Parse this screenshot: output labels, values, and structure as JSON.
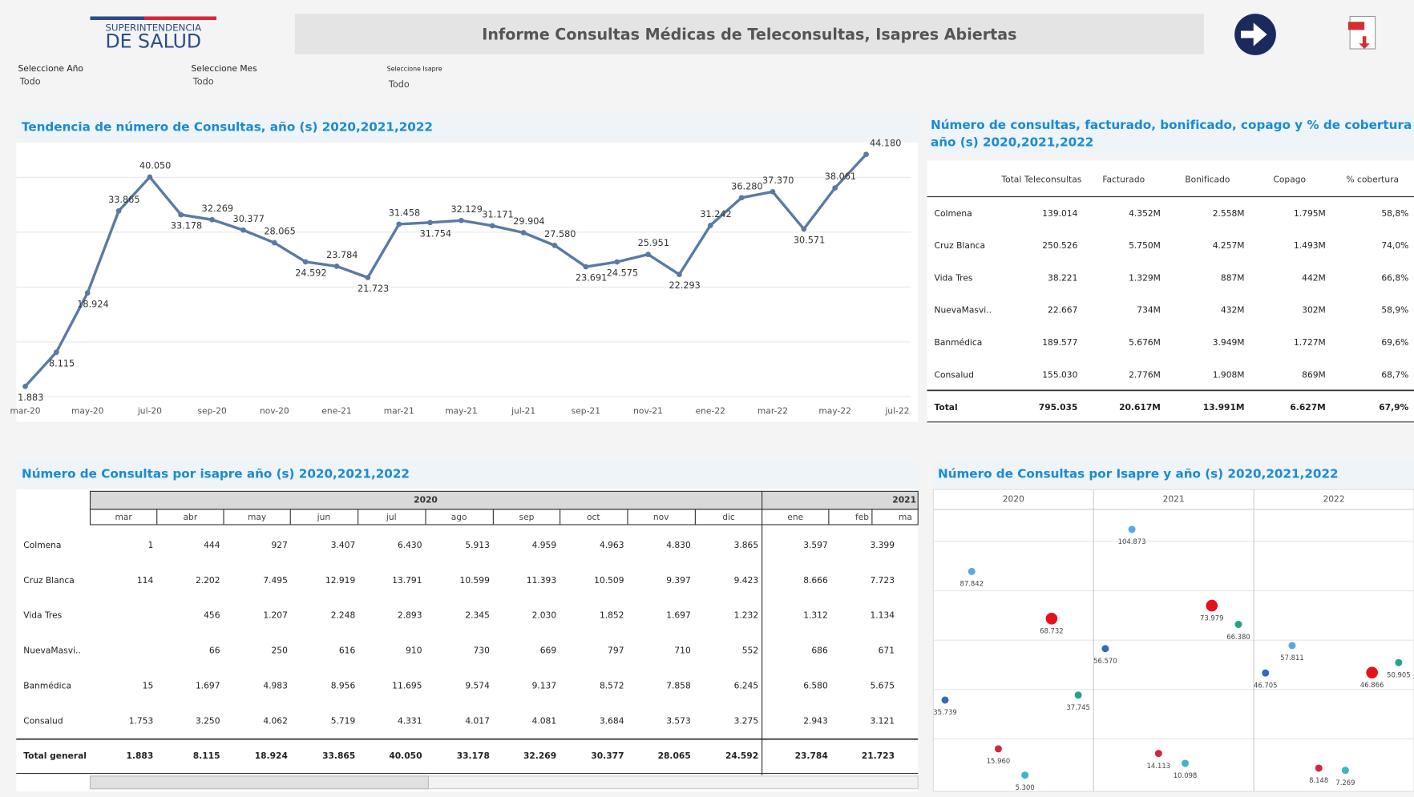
{
  "header": {
    "logo_top": "SUPERINTENDENCIA",
    "logo_bottom": "DE SALUD",
    "title": "Informe Consultas Médicas de Teleconsultas, Isapres Abiertas"
  },
  "filters": [
    {
      "label": "Seleccione Año",
      "value": "Todo"
    },
    {
      "label": "Seleccione Mes",
      "value": "Todo"
    },
    {
      "label": "Seleccione Isapre",
      "value": "Todo"
    }
  ],
  "trend_chart": {
    "type": "line",
    "title": "Tendencia de número de Consultas, año (s) 2020,2021,2022",
    "categories": [
      "mar-20",
      null,
      "may-20",
      null,
      "jul-20",
      null,
      "sep-20",
      null,
      "nov-20",
      null,
      "ene-21",
      null,
      "mar-21",
      null,
      "may-21",
      null,
      "jul-21",
      null,
      "sep-21",
      null,
      "nov-21",
      null,
      "ene-22",
      null,
      "mar-22",
      null,
      "may-22",
      null,
      "jul-22"
    ],
    "values": [
      1883,
      8115,
      18924,
      33865,
      40050,
      33178,
      32269,
      30377,
      28065,
      24592,
      23784,
      21723,
      31458,
      31754,
      32129,
      31171,
      29904,
      27580,
      23691,
      24575,
      25951,
      22293,
      31242,
      36280,
      37370,
      30571,
      38061,
      44180,
      null
    ],
    "value_labels": [
      "1.883",
      "8.115",
      "18.924",
      "33.865",
      "40.050",
      "33.178",
      "32.269",
      "30.377",
      "28.065",
      "24.592",
      "23.784",
      "21.723",
      "31.458",
      "31.754",
      "32.129",
      "31.171",
      "29.904",
      "27.580",
      "23.691",
      "24.575",
      "25.951",
      "22.293",
      "31.242",
      "36.280",
      "37.370",
      "30.571",
      "38.061",
      "44.180",
      null
    ],
    "color": "#5a7aa5",
    "ylim": [
      0,
      46500
    ],
    "gridlines": [
      0,
      10000,
      20000,
      30000,
      40000
    ]
  },
  "summary_table": {
    "title": "Número de consultas, facturado, bonificado, copago y % de cobertura año (s) 2020,2021,2022",
    "columns": [
      "Total Teleconsultas",
      "Facturado",
      "Bonificado",
      "Copago",
      "% cobertura"
    ],
    "rows": [
      {
        "label": "Colmena",
        "cells": [
          "139.014",
          "4.352M",
          "2.558M",
          "1.795M",
          "58,8%"
        ]
      },
      {
        "label": "Cruz Blanca",
        "cells": [
          "250.526",
          "5.750M",
          "4.257M",
          "1.493M",
          "74,0%"
        ]
      },
      {
        "label": "Vida Tres",
        "cells": [
          "38.221",
          "1.329M",
          "887M",
          "442M",
          "66,8%"
        ]
      },
      {
        "label": "NuevaMasvi..",
        "cells": [
          "22.667",
          "734M",
          "432M",
          "302M",
          "58,9%"
        ]
      },
      {
        "label": "Banmédica",
        "cells": [
          "189.577",
          "5.676M",
          "3.949M",
          "1.727M",
          "69,6%"
        ]
      },
      {
        "label": "Consalud",
        "cells": [
          "155.030",
          "2.776M",
          "1.908M",
          "869M",
          "68,7%"
        ]
      }
    ],
    "total": {
      "label": "Total",
      "cells": [
        "795.035",
        "20.617M",
        "13.991M",
        "6.627M",
        "67,9%"
      ]
    }
  },
  "isapre_table": {
    "title": "Número de Consultas por isapre año (s) 2020,2021,2022",
    "years": [
      "2020",
      "2021"
    ],
    "months": [
      "mar",
      "abr",
      "may",
      "jun",
      "jul",
      "ago",
      "sep",
      "oct",
      "nov",
      "dic",
      "ene",
      "feb",
      "ma"
    ],
    "rows": [
      {
        "label": "Colmena",
        "cells": [
          "1",
          "444",
          "927",
          "3.407",
          "6.430",
          "5.913",
          "4.959",
          "4.963",
          "4.830",
          "3.865",
          "3.597",
          "3.399"
        ]
      },
      {
        "label": "Cruz Blanca",
        "cells": [
          "114",
          "2.202",
          "7.495",
          "12.919",
          "13.791",
          "10.599",
          "11.393",
          "10.509",
          "9.397",
          "9.423",
          "8.666",
          "7.723"
        ]
      },
      {
        "label": "Vida Tres",
        "cells": [
          null,
          "456",
          "1.207",
          "2.248",
          "2.893",
          "2.345",
          "2.030",
          "1.852",
          "1.697",
          "1.232",
          "1.312",
          "1.134"
        ]
      },
      {
        "label": "NuevaMasvi..",
        "cells": [
          null,
          "66",
          "250",
          "616",
          "910",
          "730",
          "669",
          "797",
          "710",
          "552",
          "686",
          "671"
        ]
      },
      {
        "label": "Banmédica",
        "cells": [
          "15",
          "1.697",
          "4.983",
          "8.956",
          "11.695",
          "9.574",
          "9.137",
          "8.572",
          "7.858",
          "6.245",
          "6.580",
          "5.675"
        ]
      },
      {
        "label": "Consalud",
        "cells": [
          "1.753",
          "3.250",
          "4.062",
          "5.719",
          "4.331",
          "4.017",
          "4.081",
          "3.684",
          "3.573",
          "3.275",
          "2.943",
          "3.121"
        ]
      }
    ],
    "total": {
      "label": "Total general",
      "cells": [
        "1.883",
        "8.115",
        "18.924",
        "33.865",
        "40.050",
        "33.178",
        "32.269",
        "30.377",
        "28.065",
        "24.592",
        "23.784",
        "21.723"
      ]
    }
  },
  "scatter": {
    "type": "scatter",
    "title": "Número de Consultas por Isapre y año (s) 2020,2021,2022",
    "colors": [
      "#2f6db5",
      "#5aa9e6",
      "#d3263a",
      "#3fb4c4",
      "#e3121b",
      "#26a387"
    ],
    "ylim": [
      0,
      113000
    ],
    "gridlines": [
      20000,
      40000,
      60000,
      80000,
      100000
    ],
    "panels": [
      {
        "name": "2020",
        "values": [
          35739,
          87842,
          15960,
          5300,
          68732,
          37745
        ],
        "value_labels": [
          "35.739",
          "87.842",
          "15.960",
          "5.300",
          "68.732",
          "37.745"
        ]
      },
      {
        "name": "2021",
        "values": [
          56570,
          104873,
          14113,
          10098,
          73979,
          66380
        ],
        "value_labels": [
          "56.570",
          "104.873",
          "14.113",
          "10.098",
          "73.979",
          "66.380"
        ]
      },
      {
        "name": "2022",
        "values": [
          46705,
          57811,
          8148,
          7269,
          46866,
          50905
        ],
        "value_labels": [
          "46.705",
          "57.811",
          "8.148",
          "7.269",
          "46.866",
          "50.905"
        ]
      }
    ]
  }
}
